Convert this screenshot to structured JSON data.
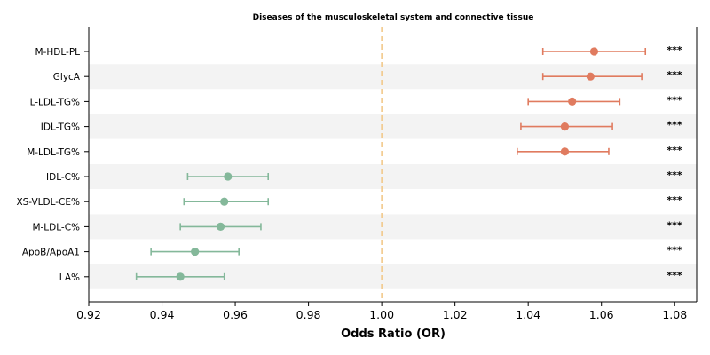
{
  "chart_data": {
    "type": "forest",
    "title": "Diseases of the musculoskeletal system and connective tissue",
    "xlabel": "Odds Ratio (OR)",
    "xlim": [
      0.92,
      1.086
    ],
    "xticks": [
      "0.92",
      "0.94",
      "0.96",
      "0.98",
      "1.00",
      "1.02",
      "1.04",
      "1.06",
      "1.08"
    ],
    "reference_line": 1.0,
    "colors": {
      "positive": "#e07b5f",
      "negative": "#84b89a",
      "reference": "#f2c98a",
      "band": "#f3f3f3"
    },
    "rows": [
      {
        "label": "M-HDL-PL",
        "or": 1.058,
        "lo": 1.044,
        "hi": 1.072,
        "sig": "***",
        "direction": "positive"
      },
      {
        "label": "GlycA",
        "or": 1.057,
        "lo": 1.044,
        "hi": 1.071,
        "sig": "***",
        "direction": "positive"
      },
      {
        "label": "L-LDL-TG%",
        "or": 1.052,
        "lo": 1.04,
        "hi": 1.065,
        "sig": "***",
        "direction": "positive"
      },
      {
        "label": "IDL-TG%",
        "or": 1.05,
        "lo": 1.038,
        "hi": 1.063,
        "sig": "***",
        "direction": "positive"
      },
      {
        "label": "M-LDL-TG%",
        "or": 1.05,
        "lo": 1.037,
        "hi": 1.062,
        "sig": "***",
        "direction": "positive"
      },
      {
        "label": "IDL-C%",
        "or": 0.958,
        "lo": 0.947,
        "hi": 0.969,
        "sig": "***",
        "direction": "negative"
      },
      {
        "label": "XS-VLDL-CE%",
        "or": 0.957,
        "lo": 0.946,
        "hi": 0.969,
        "sig": "***",
        "direction": "negative"
      },
      {
        "label": "M-LDL-C%",
        "or": 0.956,
        "lo": 0.945,
        "hi": 0.967,
        "sig": "***",
        "direction": "negative"
      },
      {
        "label": "ApoB/ApoA1",
        "or": 0.949,
        "lo": 0.937,
        "hi": 0.961,
        "sig": "***",
        "direction": "negative"
      },
      {
        "label": "LA%",
        "or": 0.945,
        "lo": 0.933,
        "hi": 0.957,
        "sig": "***",
        "direction": "negative"
      }
    ]
  }
}
